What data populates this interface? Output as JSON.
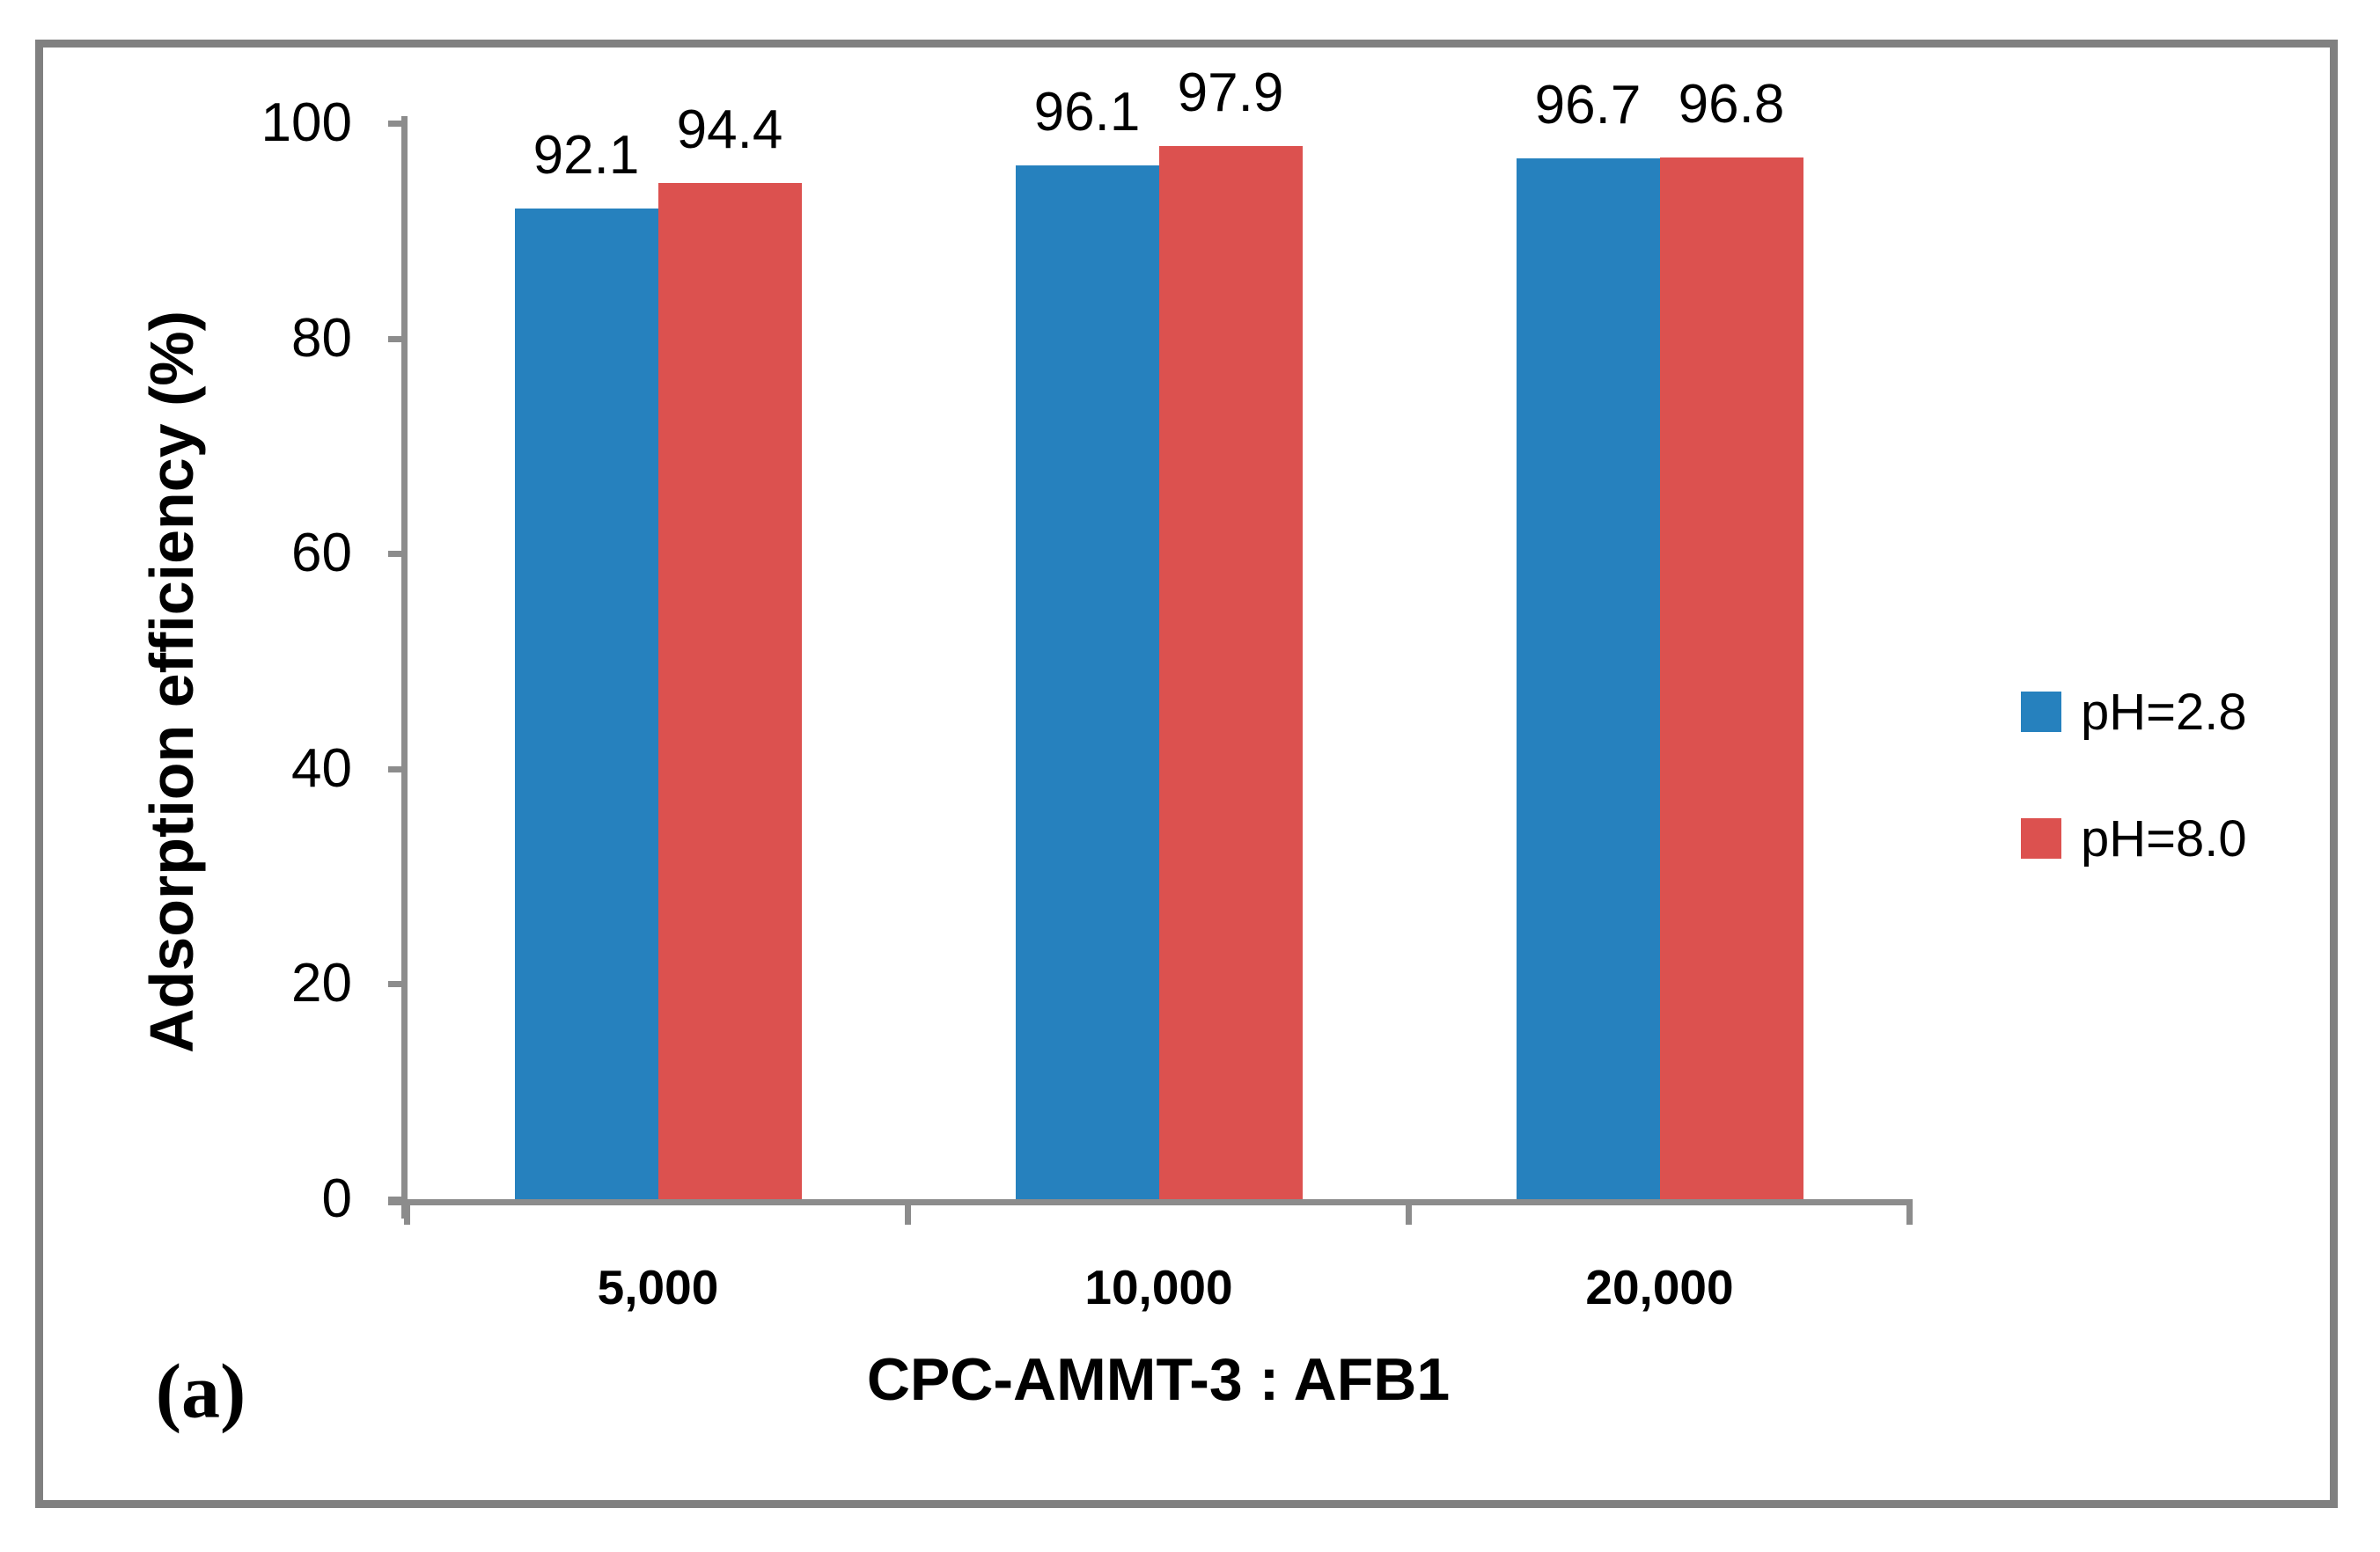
{
  "figure": {
    "panel_label": "(a)"
  },
  "chart_data": {
    "type": "bar",
    "title": "",
    "categories": [
      "5,000",
      "10,000",
      "20,000"
    ],
    "series": [
      {
        "name": "pH=2.8",
        "color": "#2681BE",
        "values": [
          92.1,
          96.1,
          96.7
        ]
      },
      {
        "name": "pH=8.0",
        "color": "#DC514F",
        "values": [
          94.4,
          97.9,
          96.8
        ]
      }
    ],
    "xlabel": "CPC-AMMT-3 : AFB1",
    "ylabel": "Adsorption efficiency (%)",
    "ylim": [
      0,
      100
    ],
    "yticks": [
      0,
      20,
      40,
      60,
      80,
      100
    ],
    "grid": false,
    "legend_position": "right",
    "data_labels": true
  },
  "colors": {
    "axis": "#8C8C8C",
    "frame": "#808080",
    "text": "#000000"
  }
}
